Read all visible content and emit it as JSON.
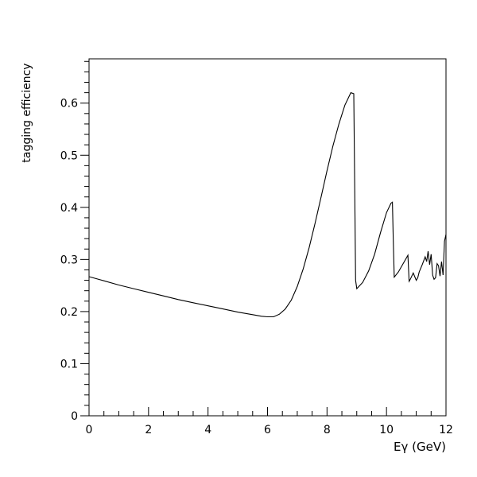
{
  "chart_data": {
    "type": "line",
    "title": "",
    "xlabel": "Eγ (GeV)",
    "ylabel": "tagging efficiency",
    "xlim": [
      0,
      12
    ],
    "ylim": [
      0,
      0.685
    ],
    "x_ticks": [
      0,
      2,
      4,
      6,
      8,
      10,
      12
    ],
    "x_tick_labels": [
      "0",
      "2",
      "4",
      "6",
      "8",
      "10",
      "12"
    ],
    "y_ticks": [
      0,
      0.1,
      0.2,
      0.3,
      0.4,
      0.5,
      0.6
    ],
    "y_tick_labels": [
      "0",
      "0.1",
      "0.2",
      "0.3",
      "0.4",
      "0.5",
      "0.6"
    ],
    "grid": false,
    "legend": "none",
    "line_color": "#000000",
    "series": [
      {
        "x": [
          0,
          0.5,
          1,
          1.5,
          2,
          2.5,
          3,
          3.5,
          4,
          4.5,
          5,
          5.5,
          5.8,
          6.0,
          6.2,
          6.4,
          6.6,
          6.8,
          7.0,
          7.2,
          7.4,
          7.6,
          7.8,
          8.0,
          8.2,
          8.4,
          8.6,
          8.8,
          8.9,
          8.93,
          8.96,
          9.0,
          9.2,
          9.4,
          9.6,
          9.8,
          10.0,
          10.15,
          10.2,
          10.23,
          10.26,
          10.4,
          10.6,
          10.72,
          10.76,
          10.8,
          10.9,
          11.0,
          11.05,
          11.1,
          11.2,
          11.3,
          11.35,
          11.4,
          11.45,
          11.5,
          11.55,
          11.6,
          11.65,
          11.7,
          11.75,
          11.8,
          11.85,
          11.9,
          11.95,
          12.0
        ],
        "y": [
          0.267,
          0.259,
          0.251,
          0.244,
          0.237,
          0.23,
          0.223,
          0.217,
          0.211,
          0.205,
          0.199,
          0.194,
          0.191,
          0.19,
          0.19,
          0.195,
          0.205,
          0.222,
          0.248,
          0.282,
          0.323,
          0.37,
          0.42,
          0.47,
          0.518,
          0.56,
          0.596,
          0.62,
          0.618,
          0.45,
          0.26,
          0.244,
          0.256,
          0.278,
          0.31,
          0.352,
          0.39,
          0.408,
          0.41,
          0.33,
          0.266,
          0.276,
          0.296,
          0.308,
          0.258,
          0.262,
          0.274,
          0.26,
          0.265,
          0.276,
          0.29,
          0.305,
          0.296,
          0.316,
          0.29,
          0.31,
          0.27,
          0.262,
          0.265,
          0.292,
          0.288,
          0.268,
          0.296,
          0.27,
          0.335,
          0.348
        ]
      }
    ]
  }
}
